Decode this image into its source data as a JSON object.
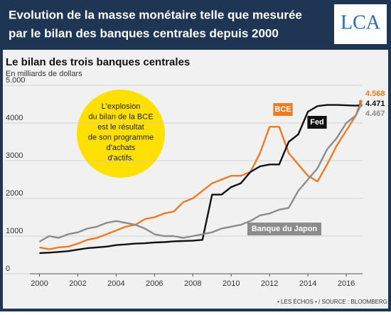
{
  "header": {
    "title_lines": [
      "Evolution de la masse monétaire telle que mesurée",
      "par le bilan des banques centrales depuis 2000"
    ],
    "logo": "LCA"
  },
  "chart_data": {
    "type": "line",
    "title": "Le bilan des trois banques centrales",
    "subtitle": "En milliards de dollars",
    "annotation": [
      "L'explosion",
      "du bilan de la BCE",
      "est le résultat",
      "de son programme",
      "d'achats",
      "d'actifs."
    ],
    "source": "• LES ÉCHOS • / SOURCE : BLOOMBERG",
    "x": [
      2000,
      2000.5,
      2001,
      2001.5,
      2002,
      2002.5,
      2003,
      2003.5,
      2004,
      2004.5,
      2005,
      2005.5,
      2006,
      2006.5,
      2007,
      2007.5,
      2008,
      2008.5,
      2009,
      2009.5,
      2010,
      2010.5,
      2011,
      2011.5,
      2012,
      2012.5,
      2013,
      2013.5,
      2014,
      2014.5,
      2015,
      2015.5,
      2016,
      2016.5,
      2016.75
    ],
    "series": [
      {
        "name": "BCE",
        "color": "#f07a22",
        "values": [
          700,
          650,
          700,
          720,
          800,
          900,
          950,
          1050,
          1150,
          1250,
          1300,
          1450,
          1500,
          1600,
          1650,
          1900,
          2000,
          2200,
          2400,
          2500,
          2600,
          2600,
          2700,
          3200,
          3900,
          3900,
          3200,
          2900,
          2600,
          2450,
          2900,
          3400,
          3800,
          4200,
          4568
        ],
        "value_labels": [
          null,
          null,
          null,
          null,
          null,
          null,
          null,
          null,
          null,
          null,
          null,
          null,
          null,
          null,
          null,
          null,
          null,
          null,
          null,
          null,
          null,
          null,
          null,
          null,
          null,
          null,
          null,
          null,
          null,
          null,
          null,
          null,
          null,
          null,
          "4.568"
        ]
      },
      {
        "name": "Fed",
        "color": "#111111",
        "values": [
          550,
          560,
          580,
          600,
          640,
          680,
          700,
          720,
          760,
          780,
          800,
          810,
          830,
          840,
          860,
          870,
          880,
          900,
          2100,
          2100,
          2300,
          2400,
          2700,
          2850,
          2900,
          2900,
          3500,
          3700,
          4300,
          4450,
          4480,
          4480,
          4470,
          4460,
          4471
        ],
        "value_labels": [
          null,
          null,
          null,
          null,
          null,
          null,
          null,
          null,
          null,
          null,
          null,
          null,
          null,
          null,
          null,
          null,
          null,
          null,
          null,
          null,
          null,
          null,
          null,
          null,
          null,
          null,
          null,
          null,
          null,
          null,
          null,
          null,
          null,
          null,
          "4.471"
        ]
      },
      {
        "name": "Banque du Japon",
        "color": "#8c8c8c",
        "values": [
          850,
          1000,
          950,
          1050,
          1100,
          1200,
          1250,
          1350,
          1400,
          1350,
          1300,
          1200,
          1050,
          1000,
          1000,
          950,
          1000,
          1050,
          1100,
          1200,
          1250,
          1300,
          1400,
          1550,
          1600,
          1700,
          1750,
          2200,
          2500,
          2800,
          3300,
          3600,
          4000,
          4200,
          4467
        ],
        "value_labels": [
          null,
          null,
          null,
          null,
          null,
          null,
          null,
          null,
          null,
          null,
          null,
          null,
          null,
          null,
          null,
          null,
          null,
          null,
          null,
          null,
          null,
          null,
          null,
          null,
          null,
          null,
          null,
          null,
          null,
          null,
          null,
          null,
          null,
          null,
          "4.467"
        ]
      }
    ],
    "xlim": [
      1999.5,
      2016.85
    ],
    "xticks": [
      2000,
      2002,
      2004,
      2006,
      2008,
      2010,
      2012,
      2014,
      2016
    ],
    "ylim": [
      0,
      5000
    ],
    "yticks": [
      0,
      1000,
      2000,
      3000,
      4000,
      {
        "value": 5000,
        "label": "5.000"
      }
    ],
    "grid": true
  }
}
